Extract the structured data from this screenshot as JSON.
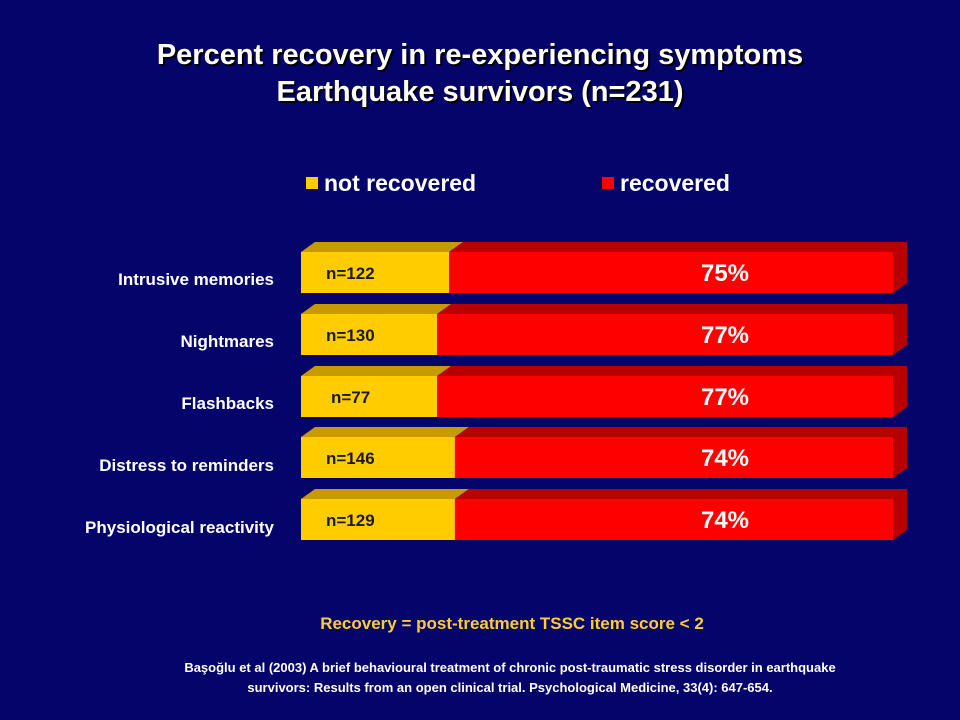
{
  "title_line1": "Percent recovery in re-experiencing symptoms",
  "title_line2": "Earthquake survivors (n=231)",
  "legend": [
    {
      "label": "not recovered",
      "color": "#ffcc00"
    },
    {
      "label": "recovered",
      "color": "#ff0000"
    }
  ],
  "chart_data": {
    "type": "bar",
    "orientation": "horizontal",
    "stacked": true,
    "legend_position": "top",
    "categories": [
      "Intrusive memories",
      "Nightmares",
      "Flashbacks",
      "Distress to reminders",
      "Physiological reactivity"
    ],
    "series": [
      {
        "name": "not recovered",
        "color": "#ffcc00",
        "values": [
          25,
          23,
          23,
          26,
          26
        ]
      },
      {
        "name": "recovered",
        "color": "#ff0000",
        "values": [
          75,
          77,
          77,
          74,
          74
        ]
      }
    ],
    "n_labels": [
      "n=122",
      "n=130",
      "n=77",
      "n=146",
      "n=129"
    ],
    "pct_labels": [
      "75%",
      "77%",
      "77%",
      "74%",
      "74%"
    ]
  },
  "footnote": "Recovery = post-treatment TSSC item score < 2",
  "citation_line1": "Başoğlu et al (2003) A brief behavioural treatment of chronic post-traumatic stress disorder in earthquake",
  "citation_line2": "survivors: Results from an open clinical trial. Psychological Medicine, 33(4): 647-654."
}
